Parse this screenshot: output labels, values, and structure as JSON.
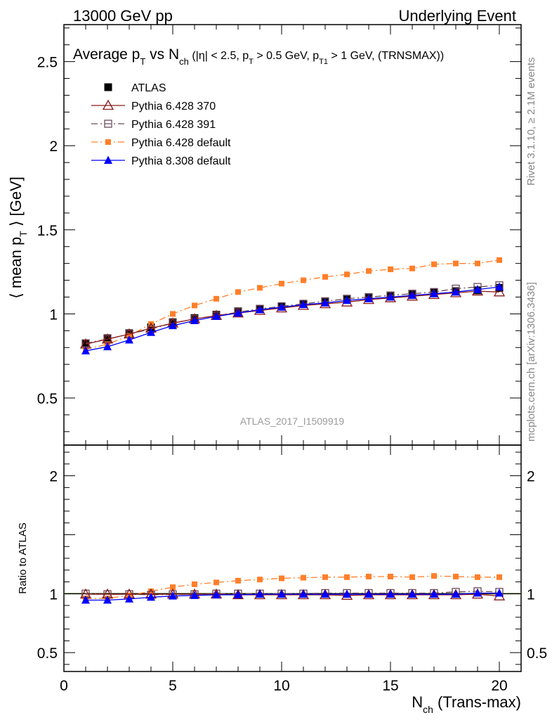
{
  "header": {
    "energy": "13000 GeV pp",
    "process": "Underlying Event"
  },
  "title": {
    "main": "Average p",
    "main_sub": "T",
    "vs": " vs N",
    "vs_sub": "ch",
    "cuts_a": " (|η| < 2.5, p",
    "cuts_a_sub": "T",
    "cuts_b": " > 0.5 GeV, p",
    "cuts_b_sub": "T1",
    "cuts_c": " > 1 GeV, (TRNSMAX))"
  },
  "side_labels": {
    "rivet": "Rivet 3.1.10, ≥ 2.1M events",
    "mcplots": "mcplots.cern.ch [arXiv:1306.3436]"
  },
  "analysis_id": "ATLAS_2017_I1509919",
  "ylabel_top": {
    "pre": "⟨ mean p",
    "sub": "T",
    "post": " ⟩ [GeV]"
  },
  "ylabel_bottom": "Ratio to ATLAS",
  "xlabel": {
    "pre": "N",
    "sub": "ch",
    "post": " (Trans-max)"
  },
  "chart_data": {
    "type": "line",
    "x": [
      1,
      2,
      3,
      4,
      5,
      6,
      7,
      8,
      9,
      10,
      11,
      12,
      13,
      14,
      15,
      16,
      17,
      18,
      19,
      20
    ],
    "xlim": [
      0,
      21
    ],
    "xticks": [
      "0",
      "5",
      "10",
      "15",
      "20"
    ],
    "main": {
      "ylim": [
        0.22,
        2.72
      ],
      "yticks": [
        "0.5",
        "1",
        "1.5",
        "2",
        "2.5"
      ]
    },
    "ratio": {
      "ylim": [
        0.34,
        2.26
      ],
      "yticks": [
        "0.5",
        "1",
        "2"
      ]
    },
    "legend_position": "top-left",
    "series": [
      {
        "name": "ATLAS",
        "color": "#000000",
        "marker": "filled-square",
        "line": "none",
        "values": [
          0.825,
          0.855,
          0.885,
          0.92,
          0.95,
          0.975,
          0.995,
          1.015,
          1.03,
          1.045,
          1.06,
          1.07,
          1.085,
          1.095,
          1.105,
          1.115,
          1.125,
          1.135,
          1.14,
          1.155
        ],
        "ratio": [
          1,
          1,
          1,
          1,
          1,
          1,
          1,
          1,
          1,
          1,
          1,
          1,
          1,
          1,
          1,
          1,
          1,
          1,
          1,
          1
        ]
      },
      {
        "name": "Pythia 6.428 370",
        "color": "#8b1a1a",
        "marker": "open-triangle",
        "line": "solid",
        "values": [
          0.82,
          0.85,
          0.88,
          0.915,
          0.945,
          0.97,
          0.99,
          1.005,
          1.02,
          1.035,
          1.05,
          1.06,
          1.07,
          1.085,
          1.095,
          1.105,
          1.115,
          1.125,
          1.135,
          1.13
        ],
        "ratio": [
          0.995,
          0.995,
          0.995,
          0.995,
          0.995,
          0.995,
          0.995,
          0.99,
          0.99,
          0.99,
          0.99,
          0.99,
          0.985,
          0.99,
          0.99,
          0.99,
          0.99,
          0.99,
          0.995,
          0.98
        ]
      },
      {
        "name": "Pythia 6.428 391",
        "color": "#6b4a5a",
        "marker": "open-square",
        "line": "dash-dot",
        "values": [
          0.825,
          0.85,
          0.88,
          0.91,
          0.945,
          0.97,
          0.99,
          1.01,
          1.03,
          1.045,
          1.06,
          1.075,
          1.09,
          1.1,
          1.11,
          1.12,
          1.13,
          1.15,
          1.16,
          1.17
        ],
        "ratio": [
          1.0,
          0.995,
          0.995,
          0.99,
          0.995,
          0.995,
          1.0,
          1.0,
          1.0,
          1.0,
          1.0,
          1.005,
          1.005,
          1.005,
          1.005,
          1.005,
          1.005,
          1.015,
          1.02,
          1.015
        ]
      },
      {
        "name": "Pythia 6.428 default",
        "color": "#ff7f2a",
        "marker": "filled-square-small",
        "line": "dash-dot",
        "values": [
          0.79,
          0.82,
          0.87,
          0.94,
          1.0,
          1.05,
          1.09,
          1.13,
          1.155,
          1.18,
          1.2,
          1.22,
          1.235,
          1.255,
          1.265,
          1.27,
          1.295,
          1.3,
          1.3,
          1.32
        ],
        "ratio": [
          0.96,
          0.96,
          0.985,
          1.02,
          1.055,
          1.08,
          1.095,
          1.11,
          1.12,
          1.13,
          1.135,
          1.14,
          1.14,
          1.145,
          1.145,
          1.14,
          1.15,
          1.145,
          1.14,
          1.14
        ]
      },
      {
        "name": "Pythia 8.308 default",
        "color": "#0000ff",
        "marker": "filled-triangle",
        "line": "solid",
        "values": [
          0.78,
          0.805,
          0.845,
          0.89,
          0.93,
          0.96,
          0.985,
          1.005,
          1.025,
          1.04,
          1.055,
          1.065,
          1.08,
          1.09,
          1.1,
          1.11,
          1.12,
          1.13,
          1.145,
          1.16
        ],
        "ratio": [
          0.945,
          0.945,
          0.955,
          0.97,
          0.98,
          0.985,
          0.99,
          0.99,
          0.995,
          0.995,
          0.995,
          0.995,
          0.995,
          0.995,
          0.995,
          0.995,
          0.995,
          0.995,
          1.005,
          1.005
        ]
      }
    ]
  }
}
